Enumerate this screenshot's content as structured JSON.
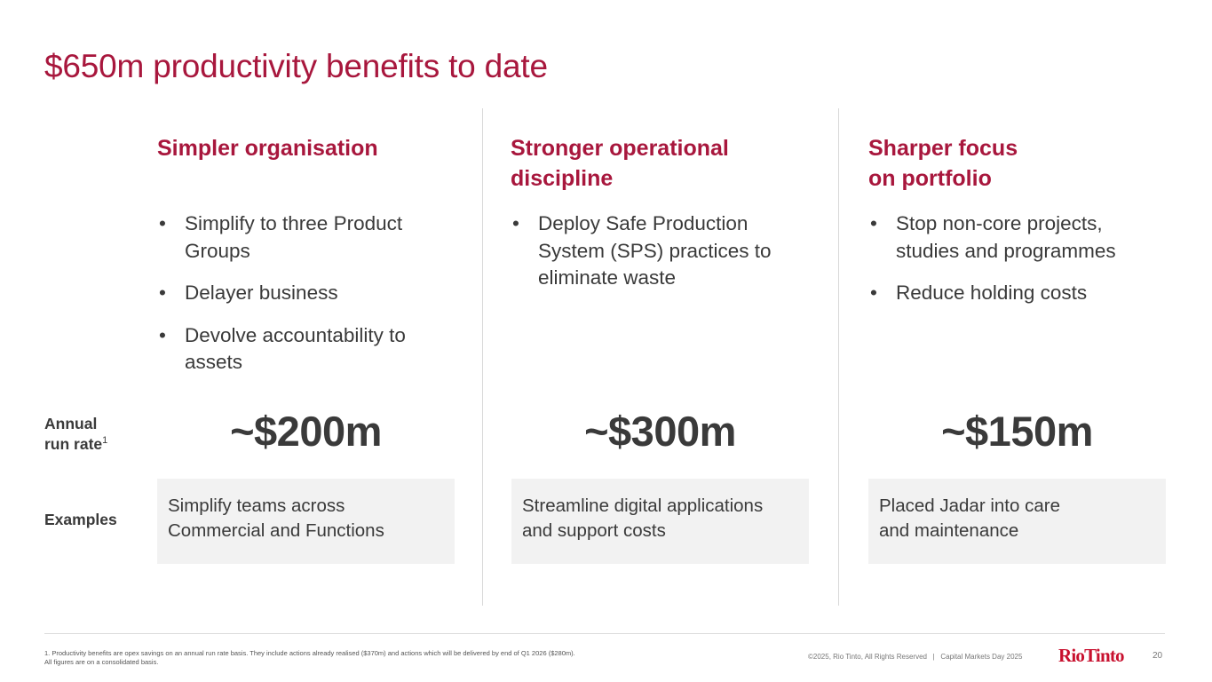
{
  "title": "$650m productivity benefits to date",
  "row_labels": {
    "annual_line1": "Annual",
    "annual_line2": "run rate",
    "annual_sup": "1",
    "examples": "Examples"
  },
  "columns": [
    {
      "heading": "Simpler organisation",
      "bullets": [
        "Simplify to three Product Groups",
        "Delayer business",
        "Devolve accountability to assets"
      ],
      "amount": "~$200m",
      "example": "Simplify teams across\nCommercial and Functions"
    },
    {
      "heading": "Stronger operational\ndiscipline",
      "bullets": [
        "Deploy Safe Production System (SPS) practices to eliminate waste"
      ],
      "amount": "~$300m",
      "example": "Streamline digital applications\nand support costs"
    },
    {
      "heading": "Sharper focus\non portfolio",
      "bullets": [
        "Stop non-core projects, studies and programmes",
        "Reduce holding costs"
      ],
      "amount": "~$150m",
      "example": "Placed Jadar into care\nand maintenance"
    }
  ],
  "footer": {
    "footnote_line1": "1. Productivity benefits are opex savings on an annual run rate basis. They include actions already realised ($370m) and actions which will be delivered by end of Q1 2026 ($280m).",
    "footnote_line2": "All figures are on a consolidated basis.",
    "copyright": "©2025, Rio Tinto, All Rights Reserved   |   Capital Markets Day 2025",
    "logo_text": "RioTinto",
    "page_number": "20"
  },
  "colors": {
    "accent": "#a8173d",
    "logo": "#c8102e",
    "text": "#3a3a3a",
    "box": "#f2f2f2"
  }
}
